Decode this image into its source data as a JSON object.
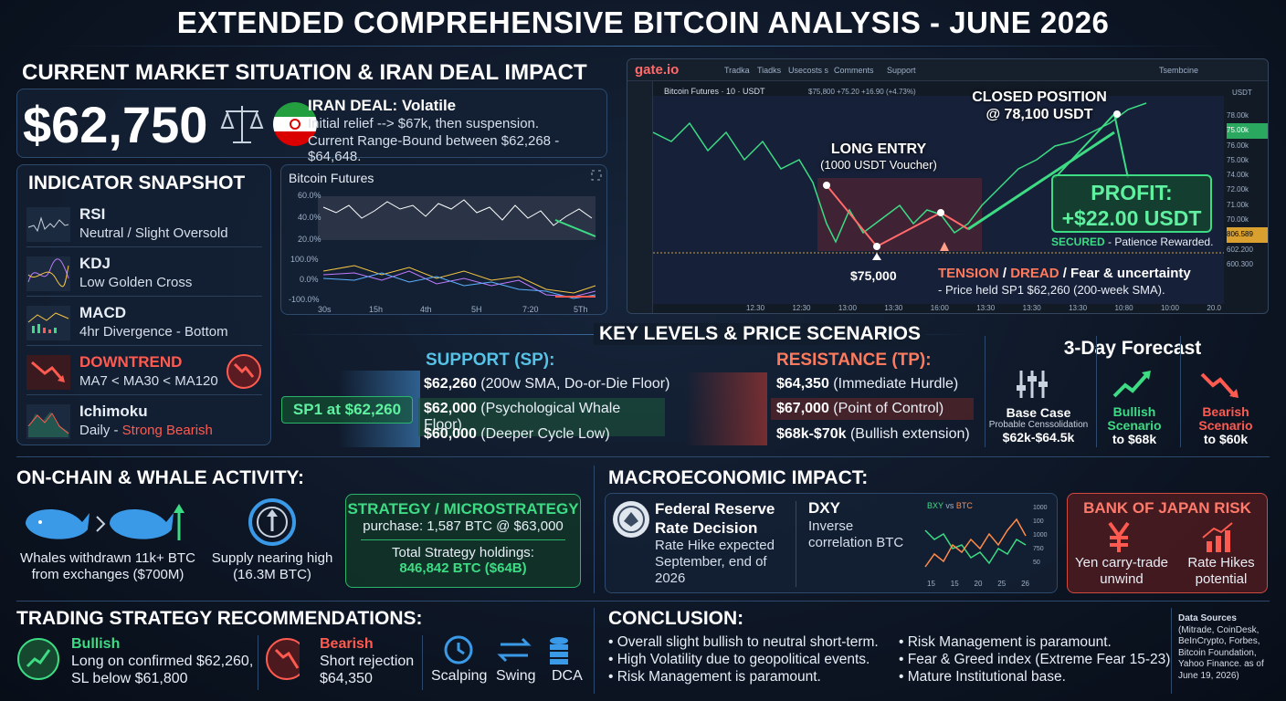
{
  "header": {
    "title": "EXTENDED COMPREHENSIVE BITCOIN ANALYSIS - JUNE 2026"
  },
  "market": {
    "heading": "CURRENT MARKET SITUATION & IRAN DEAL IMPACT",
    "price": "$62,750",
    "iran_title": "IRAN DEAL: Volatile",
    "iran_lines": [
      "Initial relief --> $67k, then suspension.",
      "Current Range-Bound between $62,268 - $64,648."
    ]
  },
  "indicators": {
    "heading": "INDICATOR SNAPSHOT",
    "items": [
      {
        "name": "RSI",
        "desc": "Neutral / Slight Oversold"
      },
      {
        "name": "KDJ",
        "desc": "Low Golden Cross"
      },
      {
        "name": "MACD",
        "desc": "4hr Divergence - Bottom"
      },
      {
        "name": "DOWNTREND",
        "desc": "MA7 < MA30 < MA120"
      },
      {
        "name": "Ichimoku",
        "desc_prefix": "Daily - ",
        "desc": "Strong Bearish"
      }
    ]
  },
  "mini_chart": {
    "title": "Bitcoin Futures",
    "rsi_ticks": [
      "60.0%",
      "40.0%",
      "20.0%"
    ],
    "kdj_ticks": [
      "100.0%",
      "0.0%",
      "-100.0%"
    ],
    "x_labels": [
      "30s",
      "15h",
      "4th",
      "5H",
      "7:20",
      "5Th"
    ]
  },
  "trading_chart": {
    "brand": "gate.io",
    "menu": [
      "Tradka",
      "Tiadks",
      "Usecosts s",
      "Comments",
      "Support"
    ],
    "right_menu": "Tsembcine",
    "symbol": "Bitcoin Futures · 10 · USDT",
    "stats": "$75,800 +75.20 +16.90 (+4.73%)",
    "currency": "USDT",
    "y_labels": [
      "78.00k",
      "76.00k",
      "75.00k",
      "74.00k",
      "72.00k",
      "71.00k",
      "70.00k",
      "602.200",
      "600.300"
    ],
    "price_tag": "75.00k",
    "level_tag": "806.589",
    "x_labels": [
      "12.30",
      "12:30",
      "13:00",
      "13:30",
      "16:00",
      "13:30",
      "13:30",
      "13:30",
      "10:80",
      "10:00",
      "20.0"
    ],
    "closed_title": "CLOSED POSITION",
    "closed_price": "@ 78,100 USDT",
    "entry_title": "LONG ENTRY",
    "entry_note": "(1000 USDT Voucher)",
    "low_label": "$75,000",
    "profit_title": "PROFIT:",
    "profit_value": "+$22.00 USDT",
    "secured": "SECURED",
    "secured_note": " - Patience Rewarded.",
    "tension": "TENSION",
    "slash1": " / ",
    "dread": "DREAD",
    "fear": " / Fear & uncertainty",
    "held": "- Price held SP1 $62,260 (200-week SMA)."
  },
  "levels": {
    "heading": "KEY LEVELS & PRICE SCENARIOS",
    "support_title": "SUPPORT (SP):",
    "sp1": "SP1 at $62,260",
    "support": [
      {
        "price": "$62,260",
        "note": " (200w SMA, Do-or-Die Floor)"
      },
      {
        "price": "$62,000",
        "note": " (Psychological Whale Floor)"
      },
      {
        "price": "$60,000",
        "note": " (Deeper Cycle Low)"
      }
    ],
    "resistance_title": "RESISTANCE (TP):",
    "resistance": [
      {
        "price": "$64,350",
        "note": " (Immediate Hurdle)"
      },
      {
        "price": "$67,000",
        "note": " (Point of Control)"
      },
      {
        "price": "$68k-$70k",
        "note": " (Bullish extension)"
      }
    ]
  },
  "forecast": {
    "heading": "3-Day Forecast",
    "cases": [
      {
        "title": "Base Case",
        "sub": "Probable Censsolidation",
        "range": "$62k-$64.5k"
      },
      {
        "title": "Bullish Scenario",
        "range": "to $68k"
      },
      {
        "title": "Bearish Scenario",
        "range": "to $60k"
      }
    ]
  },
  "onchain": {
    "heading": "ON-CHAIN & WHALE ACTIVITY:",
    "whales": "Whales withdrawn 11k+ BTC from exchanges ($700M)",
    "supply": "Supply nearing high (16.3M BTC)",
    "strategy_title": "STRATEGY / MICROSTRATEGY",
    "strategy_purchase": "purchase: 1,587 BTC @ $63,000",
    "holdings_label": "Total Strategy holdings:",
    "holdings": "846,842 BTC ($64B)"
  },
  "macro": {
    "heading": "MACROECONOMIC IMPACT:",
    "fed_title": "Federal Reserve Rate Decision",
    "fed_text": "Rate Hike expected September, end of 2026",
    "dxy_title": "DXY",
    "dxy_text": "Inverse correlation BTC",
    "dxy_legend_a": "BXY",
    "dxy_vs": " vs ",
    "dxy_legend_b": "BTC",
    "dxy_y_labels": [
      "1000",
      "100",
      "1000",
      "750",
      "50"
    ],
    "dxy_x_labels": [
      "15",
      "15",
      "20",
      "25",
      "26"
    ],
    "boj_title": "BANK OF JAPAN RISK",
    "boj_items": [
      "Yen carry-trade unwind",
      "Rate Hikes potential"
    ]
  },
  "strategy": {
    "heading": "TRADING STRATEGY RECOMMENDATIONS:",
    "bullish_title": "Bullish",
    "bullish_text": "Long on confirmed $62,260, SL below $61,800",
    "bearish_title": "Bearish",
    "bearish_text": "Short rejection $64,350",
    "styles": [
      "Scalping",
      "Swing",
      "DCA"
    ]
  },
  "conclusion": {
    "heading": "CONCLUSION:",
    "left": [
      "• Overall slight bullish to neutral short-term.",
      "• High Volatility due to geopolitical events.",
      "• Risk Management is paramount."
    ],
    "right": [
      "• Risk Management is paramount.",
      "• Fear & Greed index (Extreme Fear 15-23)",
      "• Mature Institutional base."
    ]
  },
  "sources": {
    "title": "Data Sources",
    "text": "(Mitrade, CoinDesk, BeInCrypto, Forbes, Bitcoin Foundation, Yahoo Finance. as of June 19, 2026)"
  }
}
